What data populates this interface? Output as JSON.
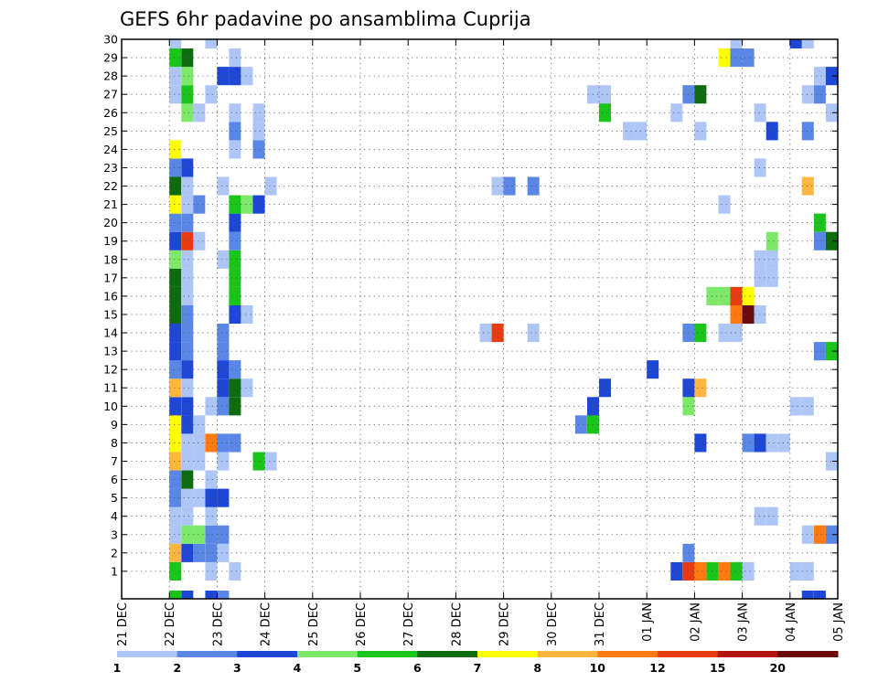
{
  "chart_data": {
    "type": "heatmap",
    "title": "GEFS 6hr padavine po ansamblima Cuprija",
    "ylim": [
      0,
      30
    ],
    "y_ticks": [
      "1",
      "2",
      "3",
      "4",
      "5",
      "6",
      "7",
      "8",
      "9",
      "10",
      "11",
      "12",
      "13",
      "14",
      "15",
      "16",
      "17",
      "18",
      "19",
      "20",
      "21",
      "22",
      "23",
      "24",
      "25",
      "26",
      "27",
      "28",
      "29",
      "30"
    ],
    "x_ticks": [
      "21 DEC",
      "22 DEC",
      "23 DEC",
      "24 DEC",
      "25 DEC",
      "26 DEC",
      "27 DEC",
      "28 DEC",
      "29 DEC",
      "30 DEC",
      "31 DEC",
      "01 JAN",
      "02 JAN",
      "03 JAN",
      "04 JAN",
      "05 JAN"
    ],
    "x_range_days": [
      0,
      15
    ],
    "grid": true,
    "legend": {
      "placement": "bottom",
      "labels": [
        "1",
        "2",
        "3",
        "4",
        "5",
        "6",
        "7",
        "8",
        "10",
        "12",
        "15",
        "20"
      ],
      "colors": [
        "#aec6f5",
        "#5a87e6",
        "#1f47d6",
        "#7ee86a",
        "#1ac41a",
        "#0f6b0f",
        "#ffff00",
        "#ffb640",
        "#ff7a10",
        "#e63c10",
        "#b41414",
        "#6b0a0a"
      ]
    },
    "cells": [
      {
        "d": 1.0,
        "m": 1,
        "c": 5
      },
      {
        "d": 1.0,
        "m": 2,
        "c": 8
      },
      {
        "d": 1.25,
        "m": 2,
        "c": 3
      },
      {
        "d": 1.5,
        "m": 2,
        "c": 2
      },
      {
        "d": 1.0,
        "m": 3,
        "c": 1
      },
      {
        "d": 1.25,
        "m": 3,
        "c": 4
      },
      {
        "d": 1.5,
        "m": 3,
        "c": 4
      },
      {
        "d": 1.75,
        "m": 3,
        "c": 2
      },
      {
        "d": 1.0,
        "m": 4,
        "c": 1
      },
      {
        "d": 1.25,
        "m": 4,
        "c": 1
      },
      {
        "d": 1.0,
        "m": 5,
        "c": 2
      },
      {
        "d": 1.25,
        "m": 5,
        "c": 1
      },
      {
        "d": 1.5,
        "m": 5,
        "c": 1
      },
      {
        "d": 1.0,
        "m": 6,
        "c": 2
      },
      {
        "d": 1.25,
        "m": 6,
        "c": 6
      },
      {
        "d": 1.0,
        "m": 7,
        "c": 8
      },
      {
        "d": 1.25,
        "m": 7,
        "c": 1
      },
      {
        "d": 1.0,
        "m": 8,
        "c": 7
      },
      {
        "d": 1.25,
        "m": 8,
        "c": 1
      },
      {
        "d": 1.5,
        "m": 8,
        "c": 1
      },
      {
        "d": 1.0,
        "m": 9,
        "c": 7
      },
      {
        "d": 1.25,
        "m": 9,
        "c": 3
      },
      {
        "d": 1.0,
        "m": 10,
        "c": 3
      },
      {
        "d": 1.25,
        "m": 10,
        "c": 3
      },
      {
        "d": 1.0,
        "m": 11,
        "c": 8
      },
      {
        "d": 1.25,
        "m": 11,
        "c": 1
      },
      {
        "d": 1.0,
        "m": 12,
        "c": 2
      },
      {
        "d": 1.25,
        "m": 12,
        "c": 3
      },
      {
        "d": 1.0,
        "m": 13,
        "c": 3
      },
      {
        "d": 1.25,
        "m": 13,
        "c": 2
      },
      {
        "d": 1.0,
        "m": 14,
        "c": 3
      },
      {
        "d": 1.25,
        "m": 14,
        "c": 2
      },
      {
        "d": 1.0,
        "m": 15,
        "c": 6
      },
      {
        "d": 1.25,
        "m": 15,
        "c": 2
      },
      {
        "d": 1.0,
        "m": 16,
        "c": 6
      },
      {
        "d": 1.25,
        "m": 16,
        "c": 1
      },
      {
        "d": 1.0,
        "m": 17,
        "c": 6
      },
      {
        "d": 1.25,
        "m": 17,
        "c": 1
      },
      {
        "d": 1.0,
        "m": 18,
        "c": 4
      },
      {
        "d": 1.25,
        "m": 18,
        "c": 1
      },
      {
        "d": 1.0,
        "m": 19,
        "c": 3
      },
      {
        "d": 1.25,
        "m": 19,
        "c": 10
      },
      {
        "d": 1.5,
        "m": 19,
        "c": 1
      },
      {
        "d": 1.0,
        "m": 20,
        "c": 2
      },
      {
        "d": 1.25,
        "m": 20,
        "c": 2
      },
      {
        "d": 1.0,
        "m": 21,
        "c": 7
      },
      {
        "d": 1.25,
        "m": 21,
        "c": 1
      },
      {
        "d": 1.5,
        "m": 21,
        "c": 2
      },
      {
        "d": 1.0,
        "m": 22,
        "c": 6
      },
      {
        "d": 1.25,
        "m": 22,
        "c": 1
      },
      {
        "d": 1.0,
        "m": 23,
        "c": 2
      },
      {
        "d": 1.25,
        "m": 23,
        "c": 3
      },
      {
        "d": 1.0,
        "m": 24,
        "c": 7
      },
      {
        "d": 1.25,
        "m": 26,
        "c": 4
      },
      {
        "d": 1.5,
        "m": 26,
        "c": 1
      },
      {
        "d": 1.0,
        "m": 27,
        "c": 1
      },
      {
        "d": 1.25,
        "m": 27,
        "c": 5
      },
      {
        "d": 1.0,
        "m": 28,
        "c": 1
      },
      {
        "d": 1.25,
        "m": 28,
        "c": 4
      },
      {
        "d": 1.0,
        "m": 29,
        "c": 5
      },
      {
        "d": 1.25,
        "m": 29,
        "c": 6
      },
      {
        "d": 1.0,
        "m": 30,
        "c": 1
      },
      {
        "d": 1.0,
        "m": 0,
        "c": 5
      },
      {
        "d": 1.25,
        "m": 0,
        "c": 3
      },
      {
        "d": 1.75,
        "m": 0,
        "c": 3
      },
      {
        "d": 2.0,
        "m": 0,
        "c": 2
      },
      {
        "d": 1.75,
        "m": 1,
        "c": 1
      },
      {
        "d": 1.75,
        "m": 2,
        "c": 2
      },
      {
        "d": 2.0,
        "m": 2,
        "c": 1
      },
      {
        "d": 2.0,
        "m": 3,
        "c": 2
      },
      {
        "d": 1.75,
        "m": 4,
        "c": 1
      },
      {
        "d": 1.75,
        "m": 5,
        "c": 3
      },
      {
        "d": 2.0,
        "m": 5,
        "c": 3
      },
      {
        "d": 1.75,
        "m": 6,
        "c": 1
      },
      {
        "d": 1.5,
        "m": 7,
        "c": 1
      },
      {
        "d": 2.0,
        "m": 7,
        "c": 1
      },
      {
        "d": 1.75,
        "m": 8,
        "c": 9
      },
      {
        "d": 2.0,
        "m": 8,
        "c": 2
      },
      {
        "d": 2.25,
        "m": 8,
        "c": 2
      },
      {
        "d": 1.5,
        "m": 9,
        "c": 1
      },
      {
        "d": 1.75,
        "m": 10,
        "c": 1
      },
      {
        "d": 2.0,
        "m": 10,
        "c": 2
      },
      {
        "d": 2.25,
        "m": 10,
        "c": 6
      },
      {
        "d": 2.0,
        "m": 11,
        "c": 3
      },
      {
        "d": 2.25,
        "m": 11,
        "c": 6
      },
      {
        "d": 2.5,
        "m": 11,
        "c": 1
      },
      {
        "d": 2.0,
        "m": 12,
        "c": 3
      },
      {
        "d": 2.25,
        "m": 12,
        "c": 2
      },
      {
        "d": 2.0,
        "m": 13,
        "c": 2
      },
      {
        "d": 2.0,
        "m": 14,
        "c": 2
      },
      {
        "d": 2.25,
        "m": 15,
        "c": 3
      },
      {
        "d": 2.5,
        "m": 15,
        "c": 1
      },
      {
        "d": 2.25,
        "m": 16,
        "c": 5
      },
      {
        "d": 2.25,
        "m": 17,
        "c": 5
      },
      {
        "d": 2.0,
        "m": 18,
        "c": 1
      },
      {
        "d": 2.25,
        "m": 18,
        "c": 5
      },
      {
        "d": 2.25,
        "m": 19,
        "c": 2
      },
      {
        "d": 2.25,
        "m": 20,
        "c": 3
      },
      {
        "d": 2.25,
        "m": 21,
        "c": 5
      },
      {
        "d": 2.5,
        "m": 21,
        "c": 4
      },
      {
        "d": 2.75,
        "m": 21,
        "c": 3
      },
      {
        "d": 2.0,
        "m": 22,
        "c": 1
      },
      {
        "d": 2.25,
        "m": 24,
        "c": 1
      },
      {
        "d": 2.75,
        "m": 24,
        "c": 2
      },
      {
        "d": 2.25,
        "m": 25,
        "c": 2
      },
      {
        "d": 2.75,
        "m": 25,
        "c": 1
      },
      {
        "d": 2.25,
        "m": 26,
        "c": 1
      },
      {
        "d": 2.75,
        "m": 26,
        "c": 1
      },
      {
        "d": 1.75,
        "m": 27,
        "c": 1
      },
      {
        "d": 2.0,
        "m": 28,
        "c": 3
      },
      {
        "d": 2.25,
        "m": 28,
        "c": 3
      },
      {
        "d": 2.5,
        "m": 28,
        "c": 1
      },
      {
        "d": 2.25,
        "m": 29,
        "c": 1
      },
      {
        "d": 1.75,
        "m": 30,
        "c": 1
      },
      {
        "d": 2.75,
        "m": 7,
        "c": 5
      },
      {
        "d": 3.0,
        "m": 7,
        "c": 1
      },
      {
        "d": 3.0,
        "m": 22,
        "c": 1
      },
      {
        "d": 2.25,
        "m": 1,
        "c": 1
      },
      {
        "d": 7.5,
        "m": 14,
        "c": 1
      },
      {
        "d": 7.75,
        "m": 14,
        "c": 10
      },
      {
        "d": 7.75,
        "m": 22,
        "c": 1
      },
      {
        "d": 8.0,
        "m": 22,
        "c": 2
      },
      {
        "d": 8.5,
        "m": 22,
        "c": 2
      },
      {
        "d": 8.5,
        "m": 14,
        "c": 1
      },
      {
        "d": 9.5,
        "m": 9,
        "c": 2
      },
      {
        "d": 9.75,
        "m": 9,
        "c": 5
      },
      {
        "d": 9.75,
        "m": 10,
        "c": 3
      },
      {
        "d": 10.0,
        "m": 11,
        "c": 3
      },
      {
        "d": 9.75,
        "m": 27,
        "c": 1
      },
      {
        "d": 10.0,
        "m": 27,
        "c": 1
      },
      {
        "d": 10.0,
        "m": 26,
        "c": 5
      },
      {
        "d": 10.5,
        "m": 25,
        "c": 1
      },
      {
        "d": 10.75,
        "m": 25,
        "c": 1
      },
      {
        "d": 11.0,
        "m": 12,
        "c": 3
      },
      {
        "d": 11.5,
        "m": 1,
        "c": 3
      },
      {
        "d": 11.75,
        "m": 1,
        "c": 10
      },
      {
        "d": 12.0,
        "m": 1,
        "c": 9
      },
      {
        "d": 12.25,
        "m": 1,
        "c": 5
      },
      {
        "d": 12.5,
        "m": 1,
        "c": 9
      },
      {
        "d": 12.75,
        "m": 1,
        "c": 5
      },
      {
        "d": 13.0,
        "m": 1,
        "c": 1
      },
      {
        "d": 11.75,
        "m": 2,
        "c": 2
      },
      {
        "d": 11.75,
        "m": 10,
        "c": 4
      },
      {
        "d": 11.75,
        "m": 11,
        "c": 3
      },
      {
        "d": 12.0,
        "m": 11,
        "c": 8
      },
      {
        "d": 12.0,
        "m": 8,
        "c": 3
      },
      {
        "d": 11.75,
        "m": 14,
        "c": 2
      },
      {
        "d": 12.0,
        "m": 14,
        "c": 5
      },
      {
        "d": 11.75,
        "m": 27,
        "c": 2
      },
      {
        "d": 12.0,
        "m": 27,
        "c": 6
      },
      {
        "d": 11.5,
        "m": 26,
        "c": 1
      },
      {
        "d": 12.0,
        "m": 25,
        "c": 1
      },
      {
        "d": 12.25,
        "m": 16,
        "c": 4
      },
      {
        "d": 12.5,
        "m": 16,
        "c": 4
      },
      {
        "d": 12.75,
        "m": 16,
        "c": 10
      },
      {
        "d": 13.0,
        "m": 16,
        "c": 7
      },
      {
        "d": 12.75,
        "m": 15,
        "c": 9
      },
      {
        "d": 13.0,
        "m": 15,
        "c": 12
      },
      {
        "d": 12.5,
        "m": 14,
        "c": 1
      },
      {
        "d": 12.75,
        "m": 14,
        "c": 1
      },
      {
        "d": 13.25,
        "m": 15,
        "c": 1
      },
      {
        "d": 12.5,
        "m": 21,
        "c": 1
      },
      {
        "d": 12.5,
        "m": 29,
        "c": 7
      },
      {
        "d": 12.75,
        "m": 29,
        "c": 2
      },
      {
        "d": 13.0,
        "m": 29,
        "c": 2
      },
      {
        "d": 12.75,
        "m": 30,
        "c": 1
      },
      {
        "d": 13.0,
        "m": 8,
        "c": 2
      },
      {
        "d": 13.25,
        "m": 8,
        "c": 3
      },
      {
        "d": 13.5,
        "m": 8,
        "c": 1
      },
      {
        "d": 13.75,
        "m": 8,
        "c": 1
      },
      {
        "d": 13.25,
        "m": 4,
        "c": 1
      },
      {
        "d": 13.5,
        "m": 4,
        "c": 1
      },
      {
        "d": 13.25,
        "m": 17,
        "c": 1
      },
      {
        "d": 13.5,
        "m": 17,
        "c": 1
      },
      {
        "d": 13.25,
        "m": 18,
        "c": 1
      },
      {
        "d": 13.5,
        "m": 18,
        "c": 1
      },
      {
        "d": 13.5,
        "m": 19,
        "c": 4
      },
      {
        "d": 13.25,
        "m": 23,
        "c": 1
      },
      {
        "d": 13.5,
        "m": 25,
        "c": 3
      },
      {
        "d": 13.25,
        "m": 26,
        "c": 1
      },
      {
        "d": 14.0,
        "m": 1,
        "c": 1
      },
      {
        "d": 14.25,
        "m": 1,
        "c": 1
      },
      {
        "d": 14.0,
        "m": 10,
        "c": 1
      },
      {
        "d": 14.25,
        "m": 10,
        "c": 1
      },
      {
        "d": 14.25,
        "m": 0,
        "c": 3
      },
      {
        "d": 14.5,
        "m": 0,
        "c": 3
      },
      {
        "d": 14.25,
        "m": 3,
        "c": 1
      },
      {
        "d": 14.5,
        "m": 3,
        "c": 9
      },
      {
        "d": 14.75,
        "m": 3,
        "c": 2
      },
      {
        "d": 14.75,
        "m": 7,
        "c": 1
      },
      {
        "d": 14.5,
        "m": 13,
        "c": 2
      },
      {
        "d": 14.75,
        "m": 13,
        "c": 5
      },
      {
        "d": 14.5,
        "m": 19,
        "c": 2
      },
      {
        "d": 14.75,
        "m": 19,
        "c": 6
      },
      {
        "d": 14.5,
        "m": 20,
        "c": 5
      },
      {
        "d": 14.25,
        "m": 22,
        "c": 8
      },
      {
        "d": 14.25,
        "m": 25,
        "c": 2
      },
      {
        "d": 14.75,
        "m": 26,
        "c": 1
      },
      {
        "d": 14.25,
        "m": 27,
        "c": 1
      },
      {
        "d": 14.5,
        "m": 27,
        "c": 2
      },
      {
        "d": 14.5,
        "m": 28,
        "c": 1
      },
      {
        "d": 14.75,
        "m": 28,
        "c": 3
      },
      {
        "d": 14.0,
        "m": 30,
        "c": 3
      },
      {
        "d": 14.25,
        "m": 30,
        "c": 1
      }
    ]
  }
}
